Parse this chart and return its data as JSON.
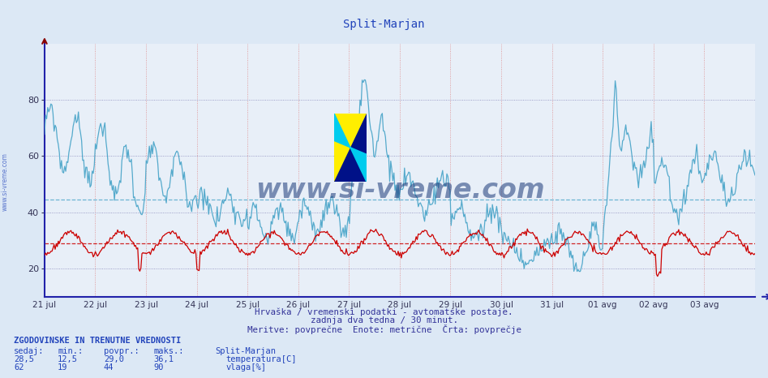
{
  "title": "Split-Marjan",
  "bg_color": "#dce8f5",
  "plot_bg_color": "#e8eff8",
  "line_color_temp": "#cc0000",
  "line_color_hum": "#55aacc",
  "avg_line_temp": 29.0,
  "avg_line_hum": 44.5,
  "ylim": [
    10,
    100
  ],
  "yticks": [
    20,
    40,
    60,
    80
  ],
  "xlabel_dates": [
    "21 jul",
    "22 jul",
    "23 jul",
    "24 jul",
    "25 jul",
    "26 jul",
    "27 jul",
    "28 jul",
    "29 jul",
    "30 jul",
    "31 jul",
    "01 avg",
    "02 avg",
    "03 avg"
  ],
  "subtitle1": "Hrvaška / vremenski podatki - avtomatske postaje.",
  "subtitle2": "zadnja dva tedna / 30 minut.",
  "subtitle3": "Meritve: povprečne  Enote: metrične  Črta: povprečje",
  "footer_title": "ZGODOVINSKE IN TRENUTNE VREDNOSTI",
  "col_headers": [
    "sedaj:",
    "min.:",
    "povpr.:",
    "maks.:"
  ],
  "col_headers_extra": "Split-Marjan",
  "row1_vals": [
    "28,5",
    "12,5",
    "29,0",
    "36,1"
  ],
  "row1_label": "temperatura[C]",
  "row1_color": "#cc0000",
  "row2_vals": [
    "62",
    "19",
    "44",
    "90"
  ],
  "row2_label": "vlaga[%]",
  "row2_color": "#44aacc",
  "watermark": "www.si-vreme.com",
  "watermark_color": "#1a3a7a"
}
